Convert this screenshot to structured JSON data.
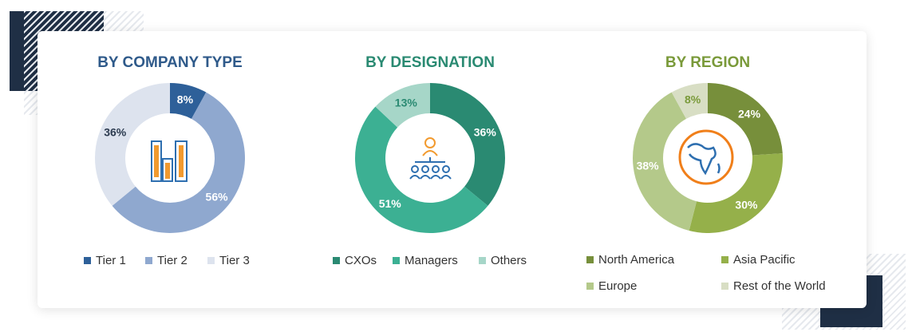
{
  "chart_data": [
    {
      "type": "pie",
      "title": "BY COMPANY TYPE",
      "title_color": "#2f5a8a",
      "categories": [
        "Tier 1",
        "Tier 2",
        "Tier 3"
      ],
      "values": [
        8,
        56,
        36
      ],
      "labels": [
        "8%",
        "56%",
        "36%"
      ],
      "colors": [
        "#2e6099",
        "#8fa8cf",
        "#dde3ee"
      ],
      "label_colors": [
        "#ffffff",
        "#ffffff",
        "#2b3a4f"
      ],
      "center_icon": "buildings-icon",
      "legend": "bottom"
    },
    {
      "type": "pie",
      "title": "BY DESIGNATION",
      "title_color": "#2a8a72",
      "categories": [
        "CXOs",
        "Managers",
        "Others"
      ],
      "values": [
        36,
        51,
        13
      ],
      "labels": [
        "36%",
        "51%",
        "13%"
      ],
      "colors": [
        "#2a8a72",
        "#3cb093",
        "#a6d6c8"
      ],
      "label_colors": [
        "#ffffff",
        "#ffffff",
        "#2a8a72"
      ],
      "center_icon": "team-hierarchy-icon",
      "legend": "bottom"
    },
    {
      "type": "pie",
      "title": "BY REGION",
      "title_color": "#7a9a3a",
      "categories": [
        "North America",
        "Asia Pacific",
        "Europe",
        "Rest of the World"
      ],
      "values": [
        24,
        30,
        38,
        8
      ],
      "labels": [
        "24%",
        "30%",
        "38%",
        "8%"
      ],
      "colors": [
        "#778f3b",
        "#95b04a",
        "#b4c98a",
        "#d8dec4"
      ],
      "label_colors": [
        "#ffffff",
        "#ffffff",
        "#ffffff",
        "#7a9a3a"
      ],
      "center_icon": "globe-icon",
      "legend": "bottom"
    }
  ]
}
